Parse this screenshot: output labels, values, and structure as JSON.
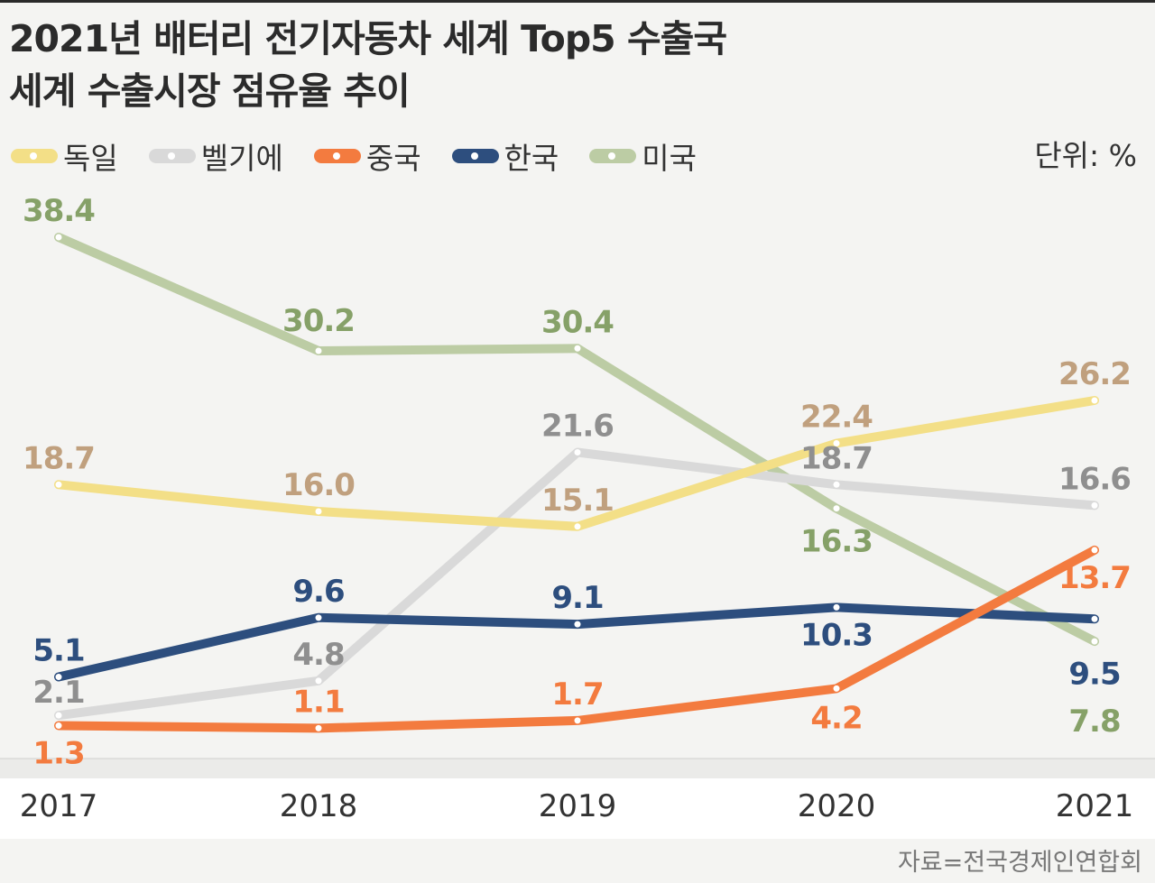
{
  "title_lines": [
    "2021년 배터리 전기자동차 세계 Top5 수출국",
    "세계 수출시장 점유율 추이"
  ],
  "unit": "단위: %",
  "source": "자료=전국경제인연합회",
  "colors": {
    "germany": "#f3df87",
    "belgium": "#d9d9d9",
    "china": "#f37b3f",
    "korea": "#2d4e7e",
    "usa": "#bccca4",
    "label_germany": "#c0a07e",
    "label_belgium": "#8f8f8f",
    "label_usa": "#86a168"
  },
  "chart_data": {
    "type": "line",
    "title": "2021년 배터리 전기자동차 세계 Top5 수출국 세계 수출시장 점유율 추이",
    "xlabel": "",
    "ylabel": "",
    "unit": "%",
    "x": [
      "2017",
      "2018",
      "2019",
      "2020",
      "2021"
    ],
    "legend_position": "top-left",
    "grid": false,
    "series": [
      {
        "name": "독일",
        "key": "germany",
        "values": [
          18.7,
          16.0,
          15.1,
          22.4,
          26.2
        ]
      },
      {
        "name": "벨기에",
        "key": "belgium",
        "values": [
          2.1,
          4.8,
          21.6,
          18.7,
          16.6
        ]
      },
      {
        "name": "중국",
        "key": "china",
        "values": [
          1.3,
          1.1,
          1.7,
          4.2,
          13.7
        ]
      },
      {
        "name": "한국",
        "key": "korea",
        "values": [
          5.1,
          9.6,
          9.1,
          10.3,
          9.5
        ]
      },
      {
        "name": "미국",
        "key": "usa",
        "values": [
          38.4,
          30.2,
          30.4,
          16.3,
          7.8
        ]
      }
    ]
  }
}
